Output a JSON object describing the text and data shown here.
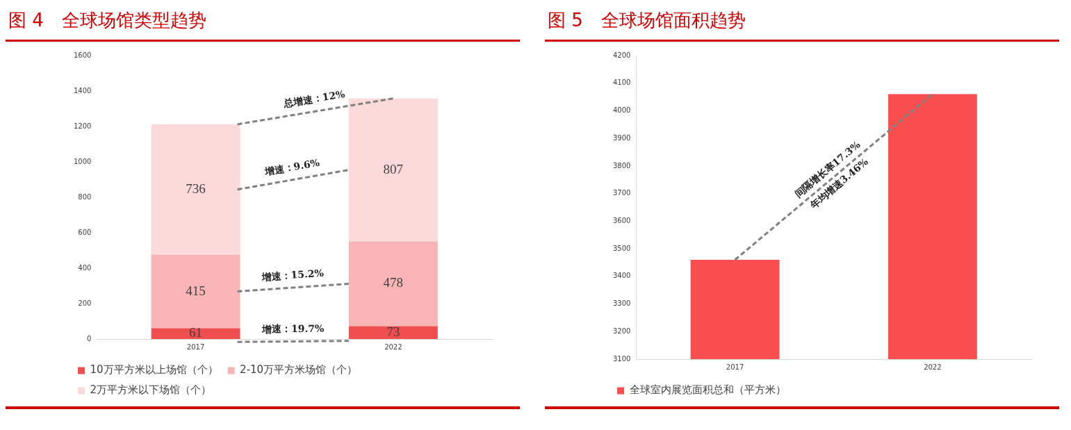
{
  "chart_data": [
    {
      "type": "bar",
      "title": "图 4　全球场馆类型趋势",
      "categories": [
        "2017",
        "2022"
      ],
      "stacked": true,
      "series": [
        {
          "name": "10万平方米以上场馆（个）",
          "color": "#f04e4e",
          "values": [
            61,
            73
          ]
        },
        {
          "name": "2-10万平方米场馆（个）",
          "color": "#f9b5b5",
          "values": [
            415,
            478
          ]
        },
        {
          "name": "2万平方米以下场馆（个）",
          "color": "#fcdada",
          "values": [
            736,
            807
          ]
        }
      ],
      "ylim": [
        0,
        1600
      ],
      "yticks": [
        0,
        200,
        400,
        600,
        800,
        1000,
        1200,
        1400,
        1600
      ],
      "grid": false,
      "legend": "bottom",
      "data_labels": true,
      "annotations": [
        "总增速：12%",
        "增速：9.6%",
        "增速：15.2%",
        "增速：19.7%"
      ]
    },
    {
      "type": "bar",
      "title": "图 5　全球场馆面积趋势",
      "categories": [
        "2017",
        "2022"
      ],
      "series": [
        {
          "name": "全球室内展览面积总和（平方米）",
          "color": "#f94f4f",
          "values": [
            3460,
            4060
          ]
        }
      ],
      "ylim": [
        3100,
        4200
      ],
      "yticks": [
        3100,
        3200,
        3300,
        3400,
        3500,
        3600,
        3700,
        3800,
        3900,
        4000,
        4100,
        4200
      ],
      "grid": false,
      "legend": "bottom",
      "annotations": [
        "间隔增长率17.3%",
        "年均增速3.46%"
      ]
    }
  ]
}
